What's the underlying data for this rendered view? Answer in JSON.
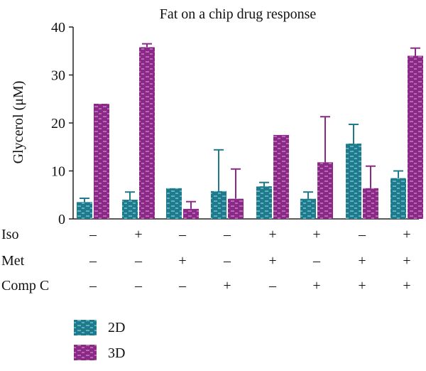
{
  "chart_data": {
    "type": "bar",
    "title": "Fat on a chip drug response",
    "ylabel": "Glycerol (μM)",
    "ylim": [
      0,
      40
    ],
    "yticks": [
      0,
      10,
      20,
      30,
      40
    ],
    "grid": false,
    "legend_position": "bottom-left",
    "conditions": {
      "rows": [
        "Iso",
        "Met",
        "Comp C"
      ],
      "values": [
        [
          "–",
          "–",
          "–"
        ],
        [
          "+",
          "–",
          "–"
        ],
        [
          "–",
          "+",
          "–"
        ],
        [
          "–",
          "–",
          "+"
        ],
        [
          "+",
          "+",
          "–"
        ],
        [
          "+",
          "–",
          "+"
        ],
        [
          "–",
          "+",
          "+"
        ],
        [
          "+",
          "+",
          "+"
        ]
      ]
    },
    "series": [
      {
        "name": "2D",
        "color": "#1f7a8c",
        "values": [
          3.5,
          4.0,
          6.4,
          5.8,
          6.8,
          4.2,
          15.7,
          8.5
        ],
        "error": [
          0.8,
          1.6,
          0.0,
          8.6,
          0.8,
          1.4,
          4.0,
          1.5
        ]
      },
      {
        "name": "3D",
        "color": "#8b2a86",
        "values": [
          24.0,
          35.8,
          2.1,
          4.2,
          17.5,
          11.8,
          6.4,
          34.0
        ],
        "error": [
          0.0,
          0.7,
          1.5,
          6.2,
          0.0,
          9.5,
          4.6,
          1.6
        ]
      }
    ]
  }
}
